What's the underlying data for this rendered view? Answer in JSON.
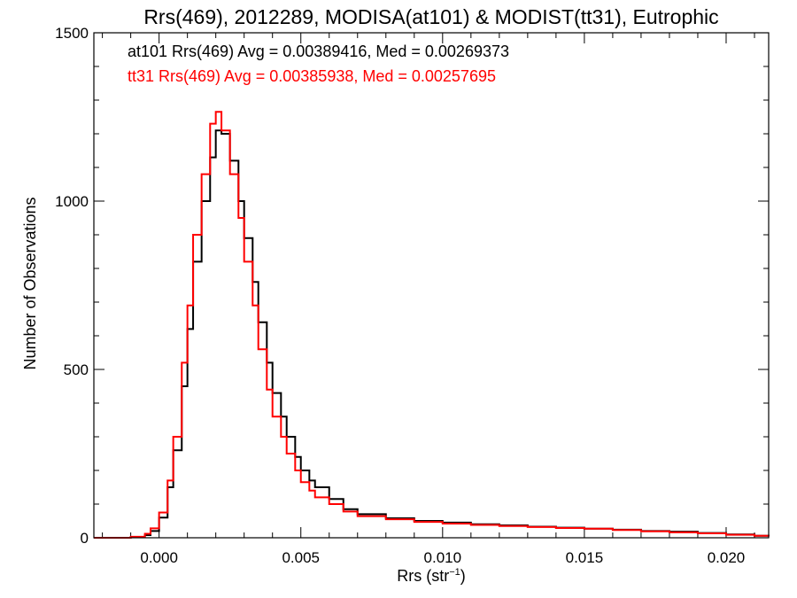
{
  "chart_data": {
    "type": "line",
    "title": "Rrs(469), 2012289, MODISA(at101) & MODIST(tt31), Eutrophic",
    "xlabel": "Rrs (str",
    "xlabel_sup": "−1",
    "xlabel_end": ")",
    "ylabel": "Number of Observations",
    "xlim": [
      -0.0023,
      0.0215
    ],
    "ylim": [
      0,
      1500
    ],
    "grid": false,
    "x_ticks": [
      {
        "value": 0.0,
        "label": "0.000"
      },
      {
        "value": 0.005,
        "label": "0.005"
      },
      {
        "value": 0.01,
        "label": "0.010"
      },
      {
        "value": 0.015,
        "label": "0.015"
      },
      {
        "value": 0.02,
        "label": "0.020"
      }
    ],
    "x_minor_step": 0.001,
    "y_ticks": [
      {
        "value": 0,
        "label": "0"
      },
      {
        "value": 500,
        "label": "500"
      },
      {
        "value": 1000,
        "label": "1000"
      },
      {
        "value": 1500,
        "label": "1500"
      }
    ],
    "y_minor_step": 100,
    "annotations": [
      {
        "text": "at101 Rrs(469) Avg = 0.00389416, Med = 0.00269373",
        "color": "#000000"
      },
      {
        "text": "tt31 Rrs(469) Avg = 0.00385938, Med = 0.00257695",
        "color": "#ff0000"
      }
    ],
    "series": [
      {
        "color": "#000000",
        "x": [
          -0.0023,
          -0.0015,
          -0.001,
          -0.0005,
          -0.0003,
          0.0,
          0.0003,
          0.0005,
          0.0008,
          0.001,
          0.0012,
          0.0015,
          0.0018,
          0.002,
          0.0022,
          0.0025,
          0.0028,
          0.003,
          0.0033,
          0.0035,
          0.0038,
          0.004,
          0.0043,
          0.0045,
          0.0048,
          0.005,
          0.0053,
          0.0055,
          0.006,
          0.0065,
          0.007,
          0.008,
          0.009,
          0.01,
          0.011,
          0.012,
          0.013,
          0.014,
          0.015,
          0.016,
          0.017,
          0.018,
          0.019,
          0.02,
          0.021,
          0.0215
        ],
        "y": [
          0,
          0,
          2,
          8,
          20,
          60,
          150,
          260,
          450,
          620,
          820,
          1000,
          1130,
          1210,
          1200,
          1120,
          1000,
          890,
          760,
          640,
          520,
          430,
          360,
          300,
          240,
          200,
          170,
          150,
          115,
          85,
          70,
          58,
          50,
          45,
          40,
          37,
          33,
          30,
          27,
          24,
          20,
          18,
          14,
          10,
          6,
          4
        ]
      },
      {
        "color": "#ff0000",
        "x": [
          -0.0023,
          -0.0015,
          -0.001,
          -0.0005,
          -0.0003,
          0.0,
          0.0003,
          0.0005,
          0.0008,
          0.001,
          0.0012,
          0.0015,
          0.0018,
          0.002,
          0.0022,
          0.0025,
          0.0028,
          0.003,
          0.0033,
          0.0035,
          0.0038,
          0.004,
          0.0043,
          0.0045,
          0.0048,
          0.005,
          0.0053,
          0.0055,
          0.006,
          0.0065,
          0.007,
          0.008,
          0.009,
          0.01,
          0.011,
          0.012,
          0.013,
          0.014,
          0.015,
          0.016,
          0.017,
          0.018,
          0.019,
          0.02,
          0.021,
          0.0215
        ],
        "y": [
          0,
          0,
          3,
          12,
          28,
          75,
          170,
          300,
          520,
          690,
          900,
          1080,
          1230,
          1265,
          1210,
          1080,
          950,
          820,
          690,
          560,
          440,
          360,
          300,
          250,
          200,
          165,
          140,
          120,
          100,
          78,
          64,
          55,
          47,
          42,
          38,
          35,
          32,
          29,
          27,
          23,
          19,
          16,
          13,
          9,
          6,
          4
        ]
      }
    ]
  }
}
